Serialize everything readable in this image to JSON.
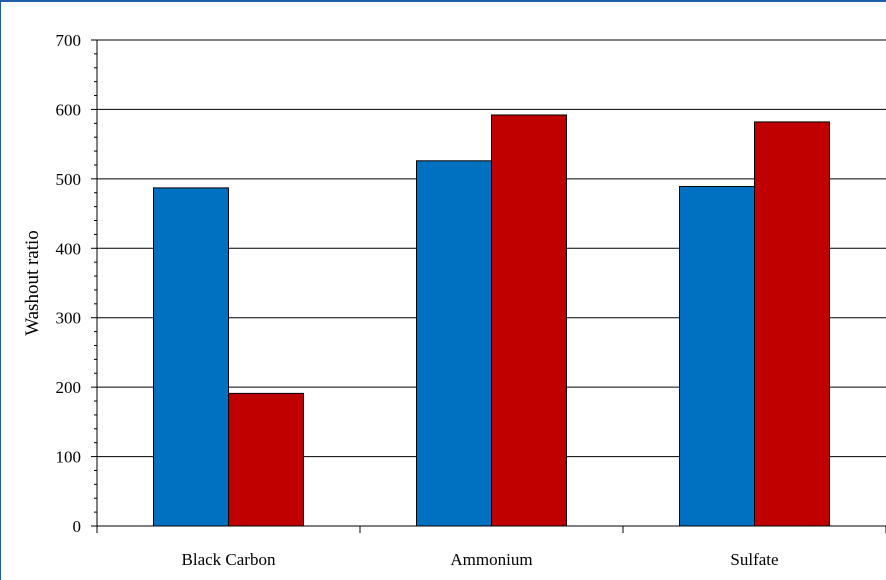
{
  "chart_data": {
    "type": "bar",
    "title": "",
    "xlabel": "",
    "ylabel": "Washout ratio",
    "ylim": [
      0,
      700
    ],
    "yticks": [
      0,
      100,
      200,
      300,
      400,
      500,
      600,
      700
    ],
    "grid": true,
    "legend": "none",
    "categories": [
      "Black Carbon",
      "Ammonium",
      "Sulfate"
    ],
    "series": [
      {
        "color": "#0070c0",
        "values": [
          487,
          526,
          489
        ]
      },
      {
        "color": "#c00000",
        "values": [
          191,
          592,
          582
        ]
      }
    ]
  }
}
